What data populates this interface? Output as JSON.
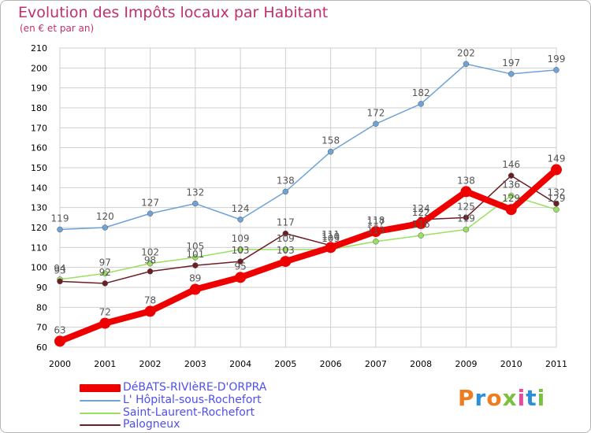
{
  "header": {
    "title": "Evolution des Impôts locaux par Habitant",
    "subtitle": "(en € et par an)"
  },
  "logo": {
    "text": "Proxiti"
  },
  "colors": {
    "background": "#ffffff",
    "grid": "#cfcfcf",
    "title": "#c0306e",
    "axis_text": "#000000",
    "legend_text": "#4f4ff0"
  },
  "chart_data": {
    "type": "line",
    "title": "Evolution des Impôts locaux par Habitant",
    "subtitle": "(en € et par an)",
    "xlabel": "",
    "ylabel": "",
    "x": [
      "2000",
      "2001",
      "2002",
      "2003",
      "2004",
      "2005",
      "2006",
      "2007",
      "2008",
      "2009",
      "2010",
      "2011"
    ],
    "ylim": [
      60,
      210
    ],
    "yticks": [
      60,
      70,
      80,
      90,
      100,
      110,
      120,
      130,
      140,
      150,
      160,
      170,
      180,
      190,
      200,
      210
    ],
    "grid": true,
    "legend_position": "bottom-left",
    "series": [
      {
        "name": "DéBATS-RIVIèRE-D'ORPRA",
        "color": "#ee0000",
        "emphasis": "thick",
        "values": [
          63,
          72,
          78,
          89,
          95,
          103,
          110,
          118,
          122,
          138,
          129,
          149
        ]
      },
      {
        "name": "L' Hôpital-sous-Rochefort",
        "color": "#6fa3d6",
        "emphasis": "thin",
        "values": [
          119,
          120,
          127,
          132,
          124,
          138,
          158,
          172,
          182,
          202,
          197,
          199
        ]
      },
      {
        "name": "Saint-Laurent-Rochefort",
        "color": "#99e060",
        "emphasis": "thin",
        "values": [
          94,
          97,
          102,
          105,
          109,
          109,
          109,
          113,
          116,
          119,
          136,
          129
        ]
      },
      {
        "name": "Palogneux",
        "color": "#6b1e23",
        "emphasis": "thin",
        "values": [
          93,
          92,
          98,
          101,
          103,
          117,
          111,
          117,
          124,
          125,
          146,
          132
        ]
      }
    ]
  }
}
